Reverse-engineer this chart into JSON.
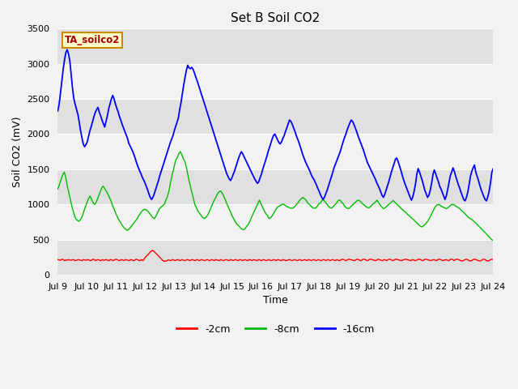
{
  "title": "Set B Soil CO2",
  "xlabel": "Time",
  "ylabel": "Soil CO2 (mV)",
  "ylim": [
    0,
    3500
  ],
  "tick_labels": [
    "Jul 9",
    "Jul 10",
    "Jul 11",
    "Jul 12",
    "Jul 13",
    "Jul 14",
    "Jul 15",
    "Jul 16",
    "Jul 17",
    "Jul 18",
    "Jul 19",
    "Jul 20",
    "Jul 21",
    "Jul 22",
    "Jul 23",
    "Jul 24"
  ],
  "yticks": [
    0,
    500,
    1000,
    1500,
    2000,
    2500,
    3000,
    3500
  ],
  "legend_label": "TA_soilco2",
  "series_labels": [
    "-2cm",
    "-8cm",
    "-16cm"
  ],
  "series_colors": [
    "#ff0000",
    "#00bb00",
    "#0000ff"
  ],
  "fig_facecolor": "#f2f2f2",
  "plot_bg_color": "#ebebeb",
  "band_light": "#f2f2f2",
  "band_dark": "#e0e0e0",
  "title_fontsize": 11,
  "axis_label_fontsize": 9,
  "tick_fontsize": 8,
  "red_data": [
    215,
    210,
    205,
    220,
    215,
    200,
    210,
    205,
    215,
    210,
    205,
    215,
    210,
    200,
    205,
    215,
    210,
    205,
    200,
    215,
    210,
    205,
    215,
    210,
    200,
    205,
    220,
    215,
    200,
    210,
    215,
    205,
    200,
    215,
    205,
    210,
    215,
    205,
    200,
    215,
    210,
    200,
    210,
    220,
    215,
    205,
    200,
    215,
    210,
    200,
    215,
    210,
    205,
    200,
    215,
    210,
    200,
    205,
    220,
    215,
    205,
    200,
    215,
    200,
    220,
    250,
    270,
    285,
    310,
    330,
    345,
    340,
    320,
    300,
    280,
    260,
    240,
    220,
    200,
    190,
    195,
    200,
    210,
    205,
    200,
    215,
    210,
    200,
    210,
    215,
    205,
    200,
    215,
    210,
    200,
    205,
    215,
    210,
    200,
    210,
    215,
    205,
    200,
    215,
    210,
    200,
    210,
    215,
    205,
    200,
    210,
    215,
    205,
    200,
    215,
    210,
    200,
    215,
    210,
    205,
    200,
    215,
    205,
    200,
    210,
    215,
    205,
    200,
    215,
    210,
    200,
    210,
    215,
    205,
    200,
    215,
    210,
    200,
    210,
    215,
    205,
    200,
    215,
    210,
    200,
    215,
    210,
    205,
    200,
    215,
    210,
    200,
    210,
    215,
    205,
    200,
    215,
    210,
    200,
    205,
    215,
    210,
    200,
    215,
    210,
    205,
    200,
    215,
    210,
    200,
    205,
    210,
    215,
    205,
    200,
    210,
    215,
    205,
    200,
    215,
    210,
    200,
    205,
    215,
    210,
    200,
    215,
    210,
    200,
    210,
    215,
    205,
    200,
    215,
    210,
    200,
    205,
    215,
    210,
    200,
    215,
    210,
    200,
    210,
    215,
    205,
    200,
    215,
    205,
    200,
    210,
    220,
    215,
    205,
    200,
    215,
    220,
    215,
    210,
    205,
    200,
    210,
    220,
    215,
    205,
    200,
    215,
    220,
    215,
    205,
    200,
    215,
    220,
    215,
    210,
    205,
    200,
    215,
    220,
    210,
    205,
    200,
    215,
    210,
    200,
    215,
    220,
    215,
    205,
    200,
    215,
    220,
    215,
    210,
    205,
    200,
    210,
    215,
    220,
    215,
    210,
    205,
    200,
    215,
    210,
    200,
    205,
    215,
    220,
    215,
    205,
    200,
    215,
    220,
    215,
    210,
    205,
    200,
    210,
    215,
    205,
    200,
    215,
    220,
    215,
    205,
    200,
    210,
    215,
    205,
    200,
    215,
    220,
    215,
    200,
    215,
    220,
    215,
    210,
    200,
    195,
    200,
    215,
    220,
    215,
    200,
    195,
    200,
    215,
    220,
    215,
    210,
    200,
    195,
    200,
    215,
    220,
    215,
    200,
    195,
    200,
    215,
    220,
    215
  ],
  "green_data": [
    1220,
    1280,
    1350,
    1420,
    1460,
    1380,
    1250,
    1150,
    1050,
    950,
    870,
    800,
    775,
    760,
    780,
    820,
    890,
    960,
    1020,
    1080,
    1120,
    1070,
    1020,
    1000,
    1040,
    1100,
    1160,
    1220,
    1260,
    1230,
    1190,
    1150,
    1100,
    1050,
    980,
    930,
    870,
    820,
    775,
    740,
    700,
    670,
    650,
    630,
    645,
    670,
    700,
    730,
    760,
    790,
    830,
    865,
    900,
    920,
    930,
    920,
    900,
    870,
    840,
    810,
    800,
    840,
    890,
    940,
    960,
    980,
    1000,
    1060,
    1110,
    1200,
    1320,
    1430,
    1520,
    1620,
    1660,
    1720,
    1750,
    1700,
    1640,
    1600,
    1500,
    1380,
    1280,
    1180,
    1090,
    1000,
    950,
    900,
    870,
    840,
    810,
    800,
    820,
    850,
    900,
    955,
    1010,
    1060,
    1100,
    1150,
    1180,
    1190,
    1160,
    1110,
    1060,
    1000,
    950,
    900,
    840,
    800,
    755,
    720,
    700,
    675,
    650,
    640,
    650,
    685,
    710,
    755,
    810,
    860,
    910,
    960,
    1010,
    1060,
    1010,
    960,
    910,
    870,
    840,
    800,
    810,
    840,
    880,
    920,
    955,
    970,
    985,
    1000,
    1005,
    985,
    970,
    960,
    950,
    945,
    950,
    970,
    1000,
    1025,
    1060,
    1080,
    1100,
    1080,
    1060,
    1020,
    1000,
    975,
    955,
    945,
    950,
    975,
    1010,
    1025,
    1060,
    1060,
    1030,
    1000,
    970,
    950,
    950,
    975,
    1000,
    1025,
    1060,
    1060,
    1030,
    1010,
    970,
    950,
    940,
    950,
    975,
    995,
    1020,
    1040,
    1060,
    1055,
    1035,
    1010,
    990,
    970,
    955,
    950,
    970,
    995,
    1015,
    1035,
    1060,
    1020,
    990,
    960,
    940,
    950,
    975,
    995,
    1015,
    1035,
    1055,
    1030,
    1010,
    985,
    965,
    940,
    920,
    900,
    880,
    855,
    835,
    815,
    795,
    775,
    750,
    730,
    705,
    685,
    680,
    700,
    720,
    750,
    785,
    825,
    875,
    920,
    965,
    990,
    1000,
    990,
    970,
    960,
    950,
    940,
    955,
    975,
    995,
    1000,
    990,
    970,
    960,
    945,
    920,
    900,
    880,
    855,
    830,
    810,
    795,
    780,
    760,
    740,
    715,
    690,
    670,
    645,
    620,
    598,
    575,
    550,
    525,
    500,
    488
  ],
  "blue_data": [
    2330,
    2420,
    2580,
    2750,
    2920,
    3050,
    3160,
    3200,
    3140,
    3040,
    2840,
    2650,
    2500,
    2420,
    2350,
    2280,
    2170,
    2050,
    1950,
    1860,
    1820,
    1850,
    1890,
    1970,
    2050,
    2110,
    2180,
    2250,
    2310,
    2350,
    2380,
    2310,
    2260,
    2200,
    2150,
    2100,
    2180,
    2260,
    2360,
    2430,
    2500,
    2550,
    2500,
    2430,
    2370,
    2320,
    2250,
    2200,
    2140,
    2090,
    2040,
    1990,
    1940,
    1870,
    1830,
    1790,
    1750,
    1700,
    1640,
    1580,
    1530,
    1480,
    1440,
    1390,
    1350,
    1310,
    1260,
    1210,
    1150,
    1100,
    1070,
    1100,
    1150,
    1210,
    1270,
    1330,
    1400,
    1460,
    1520,
    1580,
    1640,
    1700,
    1760,
    1820,
    1880,
    1930,
    1980,
    2050,
    2110,
    2170,
    2230,
    2350,
    2450,
    2580,
    2700,
    2810,
    2910,
    2980,
    2940,
    2930,
    2950,
    2920,
    2870,
    2810,
    2760,
    2700,
    2640,
    2580,
    2520,
    2460,
    2400,
    2340,
    2280,
    2220,
    2160,
    2100,
    2040,
    1980,
    1920,
    1860,
    1800,
    1740,
    1680,
    1620,
    1560,
    1500,
    1440,
    1400,
    1360,
    1340,
    1380,
    1430,
    1480,
    1540,
    1600,
    1660,
    1710,
    1750,
    1720,
    1680,
    1640,
    1600,
    1560,
    1520,
    1480,
    1440,
    1400,
    1360,
    1330,
    1300,
    1320,
    1380,
    1430,
    1500,
    1560,
    1620,
    1680,
    1750,
    1810,
    1870,
    1930,
    1980,
    2000,
    1960,
    1920,
    1880,
    1860,
    1890,
    1940,
    1980,
    2040,
    2090,
    2150,
    2200,
    2180,
    2140,
    2090,
    2040,
    1980,
    1930,
    1880,
    1820,
    1760,
    1700,
    1650,
    1600,
    1560,
    1520,
    1480,
    1430,
    1390,
    1360,
    1320,
    1280,
    1230,
    1190,
    1140,
    1100,
    1070,
    1100,
    1150,
    1200,
    1260,
    1320,
    1380,
    1440,
    1510,
    1560,
    1610,
    1660,
    1710,
    1760,
    1830,
    1890,
    1950,
    2000,
    2060,
    2110,
    2160,
    2200,
    2180,
    2140,
    2090,
    2040,
    1980,
    1930,
    1880,
    1830,
    1780,
    1720,
    1660,
    1600,
    1560,
    1520,
    1480,
    1440,
    1400,
    1360,
    1310,
    1270,
    1230,
    1180,
    1130,
    1100,
    1140,
    1200,
    1260,
    1320,
    1390,
    1460,
    1520,
    1580,
    1640,
    1660,
    1610,
    1550,
    1490,
    1420,
    1360,
    1300,
    1250,
    1200,
    1150,
    1100,
    1060,
    1110,
    1190,
    1290,
    1430,
    1510,
    1460,
    1400,
    1340,
    1270,
    1200,
    1150,
    1100,
    1130,
    1200,
    1300,
    1420,
    1490,
    1440,
    1380,
    1330,
    1260,
    1220,
    1170,
    1120,
    1070,
    1120,
    1210,
    1310,
    1410,
    1460,
    1520,
    1470,
    1400,
    1340,
    1280,
    1230,
    1170,
    1120,
    1070,
    1050,
    1100,
    1170,
    1280,
    1400,
    1470,
    1520,
    1560,
    1460,
    1400,
    1340,
    1270,
    1210,
    1160,
    1110,
    1070,
    1050,
    1110,
    1190,
    1310,
    1460,
    1510
  ]
}
